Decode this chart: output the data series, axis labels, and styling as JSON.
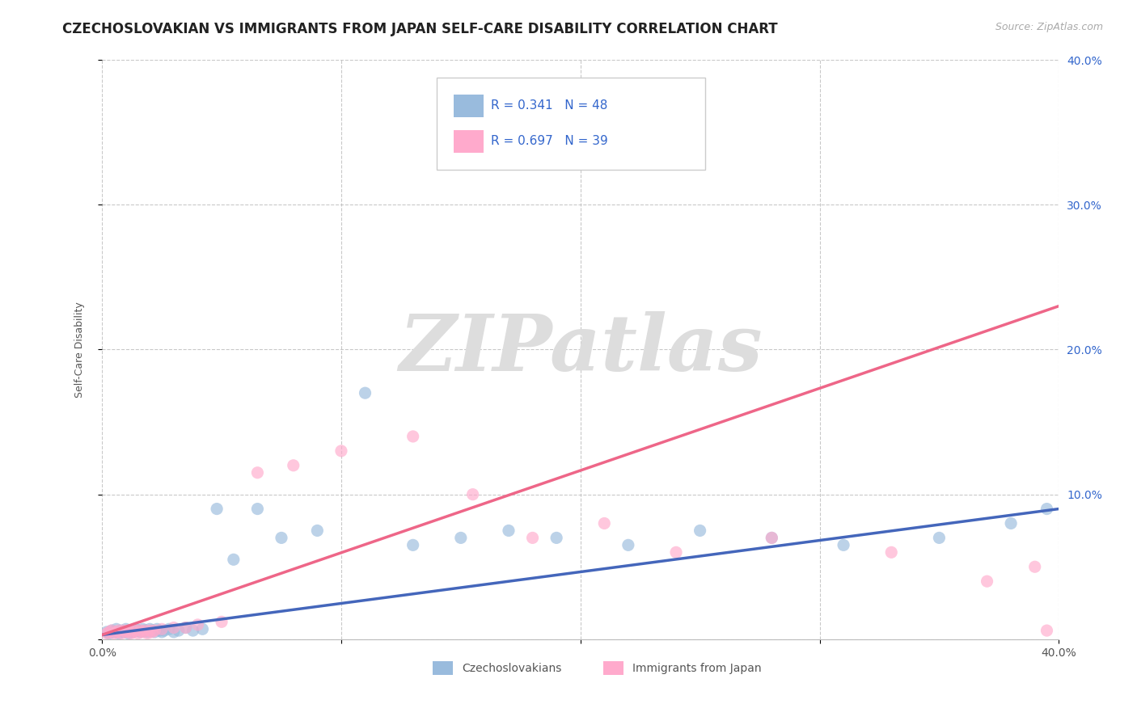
{
  "title": "CZECHOSLOVAKIAN VS IMMIGRANTS FROM JAPAN SELF-CARE DISABILITY CORRELATION CHART",
  "source_text": "Source: ZipAtlas.com",
  "ylabel": "Self-Care Disability",
  "xlim": [
    0.0,
    0.4
  ],
  "ylim": [
    0.0,
    0.4
  ],
  "xticks": [
    0.0,
    0.1,
    0.2,
    0.3,
    0.4
  ],
  "yticks": [
    0.0,
    0.1,
    0.2,
    0.3,
    0.4
  ],
  "xticklabels": [
    "0.0%",
    "",
    "",
    "",
    "40.0%"
  ],
  "yticklabels_right": [
    "",
    "10.0%",
    "20.0%",
    "30.0%",
    "40.0%"
  ],
  "blue_color": "#99BBDD",
  "pink_color": "#FFAACC",
  "blue_line_color": "#4466BB",
  "pink_line_color": "#EE6688",
  "blue_R": 0.341,
  "blue_N": 48,
  "pink_R": 0.697,
  "pink_N": 39,
  "watermark": "ZIPatlas",
  "legend_label_blue": "Czechoslovakians",
  "legend_label_pink": "Immigrants from Japan",
  "blue_scatter_x": [
    0.002,
    0.003,
    0.004,
    0.005,
    0.006,
    0.007,
    0.008,
    0.009,
    0.01,
    0.011,
    0.012,
    0.013,
    0.014,
    0.015,
    0.016,
    0.017,
    0.018,
    0.019,
    0.02,
    0.021,
    0.022,
    0.023,
    0.024,
    0.025,
    0.026,
    0.028,
    0.03,
    0.032,
    0.035,
    0.038,
    0.042,
    0.048,
    0.055,
    0.065,
    0.075,
    0.09,
    0.11,
    0.13,
    0.15,
    0.17,
    0.19,
    0.22,
    0.25,
    0.28,
    0.31,
    0.35,
    0.38,
    0.395
  ],
  "blue_scatter_y": [
    0.005,
    0.004,
    0.006,
    0.005,
    0.007,
    0.004,
    0.006,
    0.005,
    0.007,
    0.004,
    0.006,
    0.005,
    0.007,
    0.006,
    0.005,
    0.007,
    0.006,
    0.005,
    0.007,
    0.006,
    0.005,
    0.007,
    0.006,
    0.005,
    0.006,
    0.007,
    0.005,
    0.006,
    0.008,
    0.006,
    0.007,
    0.09,
    0.055,
    0.09,
    0.07,
    0.075,
    0.17,
    0.065,
    0.07,
    0.075,
    0.07,
    0.065,
    0.075,
    0.07,
    0.065,
    0.07,
    0.08,
    0.09
  ],
  "pink_scatter_x": [
    0.002,
    0.003,
    0.004,
    0.005,
    0.006,
    0.007,
    0.008,
    0.009,
    0.01,
    0.011,
    0.012,
    0.013,
    0.014,
    0.015,
    0.016,
    0.017,
    0.018,
    0.019,
    0.02,
    0.021,
    0.022,
    0.025,
    0.03,
    0.035,
    0.04,
    0.05,
    0.065,
    0.08,
    0.1,
    0.13,
    0.155,
    0.18,
    0.21,
    0.24,
    0.28,
    0.33,
    0.37,
    0.39,
    0.395
  ],
  "pink_scatter_y": [
    0.004,
    0.005,
    0.006,
    0.004,
    0.005,
    0.006,
    0.004,
    0.006,
    0.005,
    0.006,
    0.004,
    0.005,
    0.006,
    0.004,
    0.006,
    0.005,
    0.006,
    0.004,
    0.006,
    0.005,
    0.006,
    0.007,
    0.008,
    0.008,
    0.01,
    0.012,
    0.115,
    0.12,
    0.13,
    0.14,
    0.1,
    0.07,
    0.08,
    0.06,
    0.07,
    0.06,
    0.04,
    0.05,
    0.006
  ],
  "blue_trend_x": [
    0.0,
    0.4
  ],
  "blue_trend_y": [
    0.003,
    0.09
  ],
  "pink_trend_x": [
    0.0,
    0.4
  ],
  "pink_trend_y": [
    0.003,
    0.23
  ],
  "bg_color": "#FFFFFF",
  "grid_color": "#BBBBBB",
  "title_fontsize": 12,
  "tick_fontsize": 10,
  "watermark_color": "#DDDDDD",
  "watermark_fontsize": 70
}
